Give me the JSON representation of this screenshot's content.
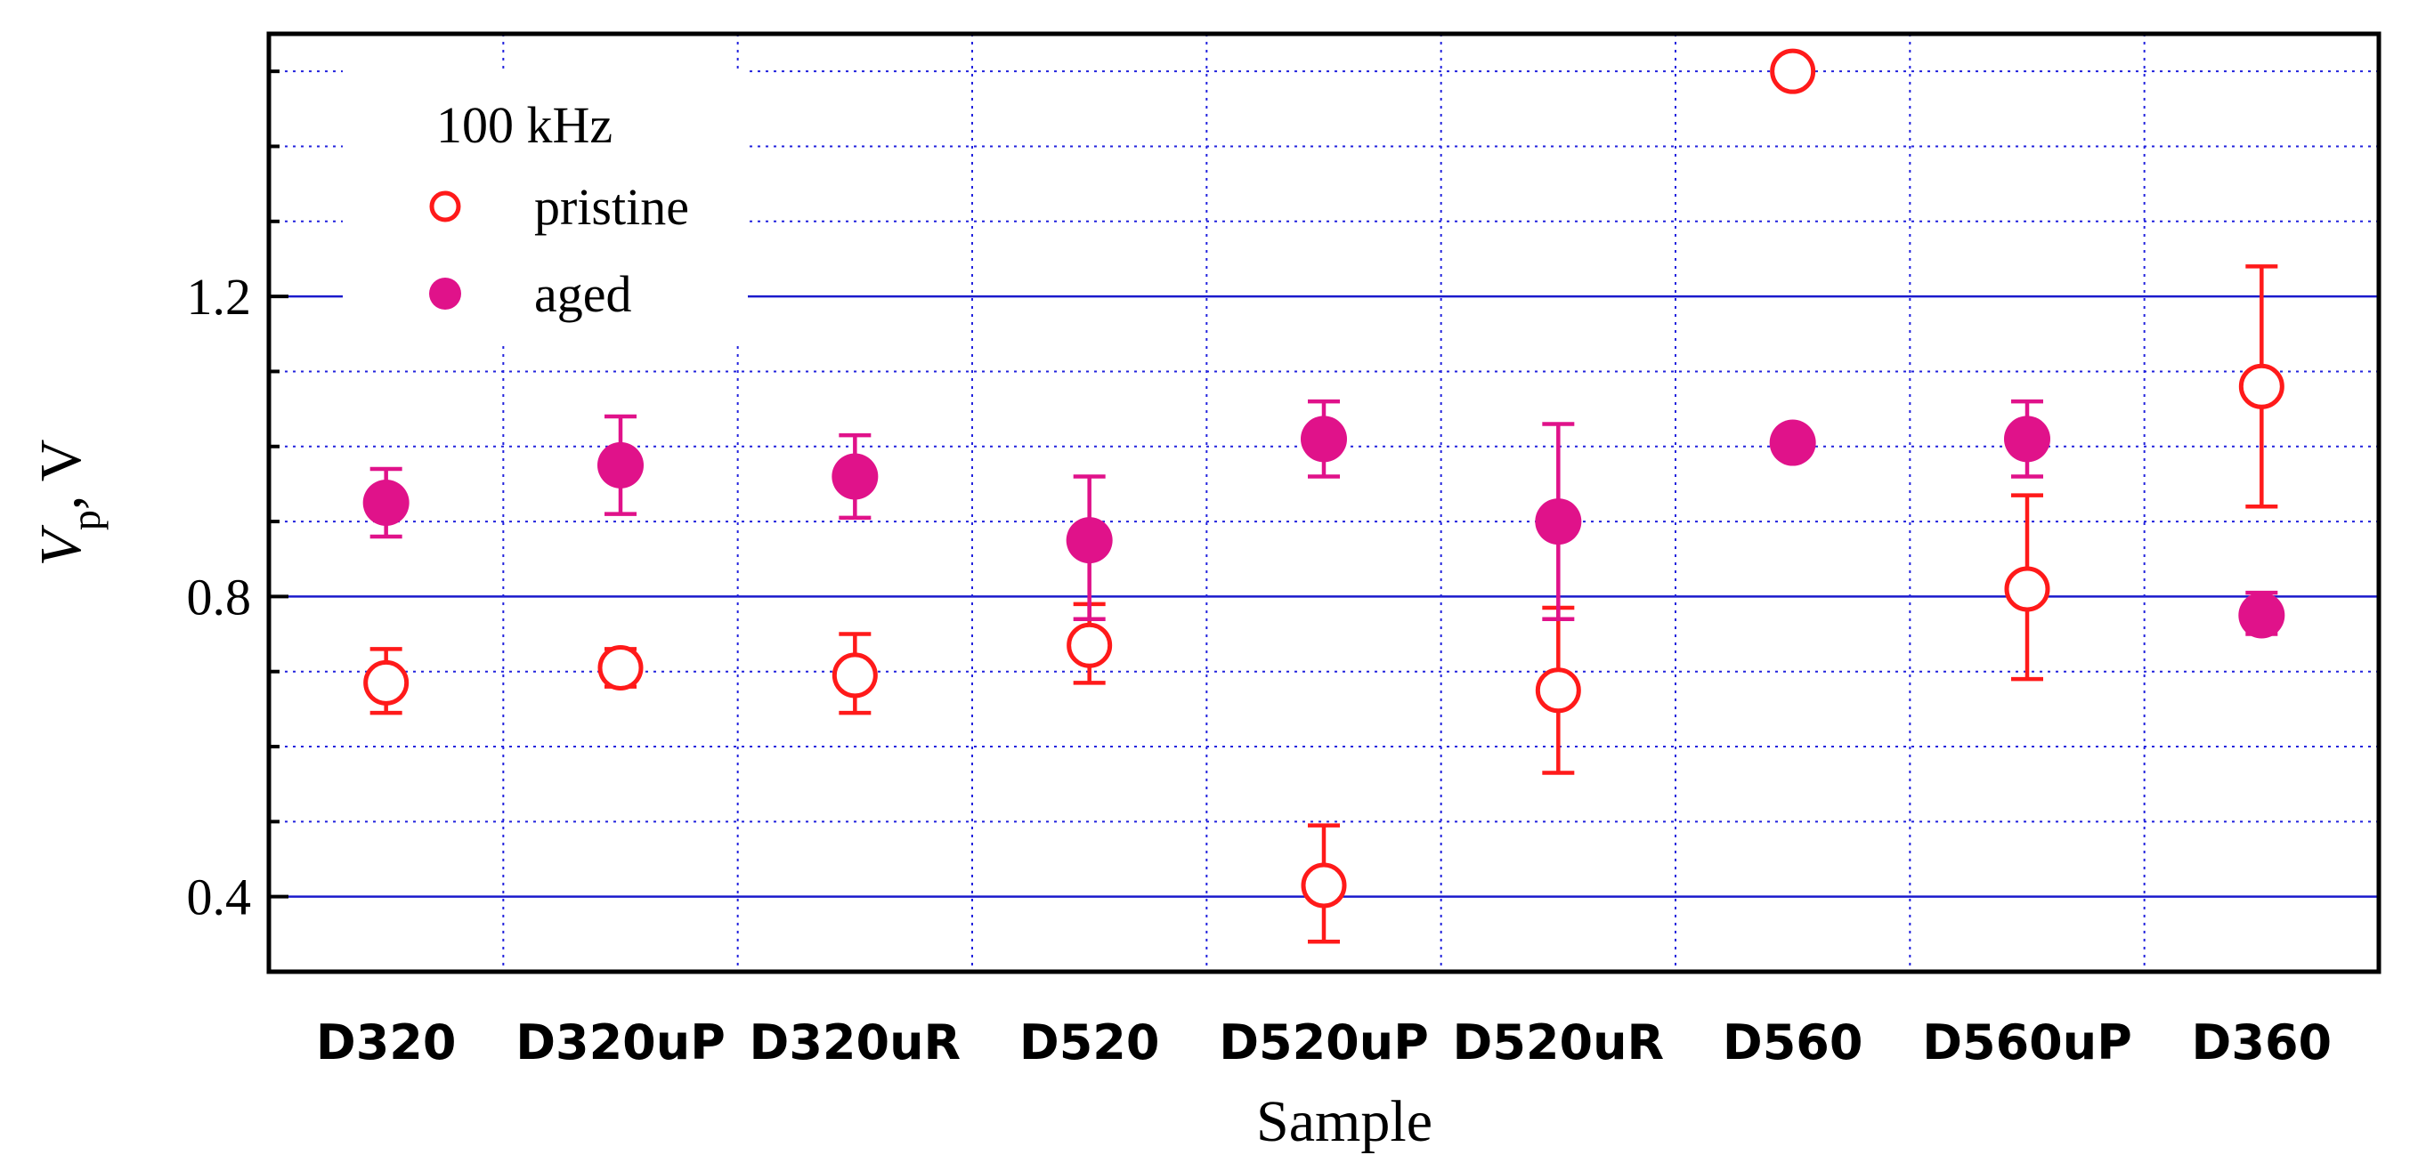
{
  "chart_data": {
    "type": "scatter",
    "title": "",
    "xlabel": "Sample",
    "ylabel_main": "V",
    "ylabel_sub": "p",
    "ylabel_unit": "V",
    "ylim": [
      0.3,
      1.55
    ],
    "yticks": [
      0.4,
      0.8,
      1.2
    ],
    "yticks_minor": [
      0.5,
      0.6,
      0.7,
      0.9,
      1.0,
      1.1,
      1.3,
      1.4,
      1.5
    ],
    "grid": true,
    "categories": [
      "D320",
      "D320uP",
      "D320uR",
      "D520",
      "D520uP",
      "D520uR",
      "D560",
      "D560uP",
      "D360"
    ],
    "legend": {
      "title": "100 kHz",
      "placement": "top-left"
    },
    "series": [
      {
        "name": "pristine",
        "marker": "open-circle",
        "color": "#ff1a1a",
        "values": [
          0.685,
          0.705,
          0.695,
          0.735,
          0.415,
          0.675,
          1.5,
          0.81,
          1.08
        ],
        "err_low": [
          0.645,
          0.68,
          0.645,
          0.685,
          0.34,
          0.565,
          null,
          0.69,
          0.92
        ],
        "err_high": [
          0.73,
          0.73,
          0.75,
          0.79,
          0.495,
          0.785,
          null,
          0.935,
          1.24
        ]
      },
      {
        "name": "aged",
        "marker": "filled-circle",
        "color": "#e0128a",
        "values": [
          0.925,
          0.975,
          0.96,
          0.875,
          1.01,
          0.9,
          1.005,
          1.01,
          0.775
        ],
        "err_low": [
          0.88,
          0.91,
          0.905,
          0.77,
          0.96,
          0.77,
          null,
          0.96,
          0.75
        ],
        "err_high": [
          0.97,
          1.04,
          1.015,
          0.96,
          1.06,
          1.03,
          null,
          1.06,
          0.805
        ]
      }
    ]
  }
}
